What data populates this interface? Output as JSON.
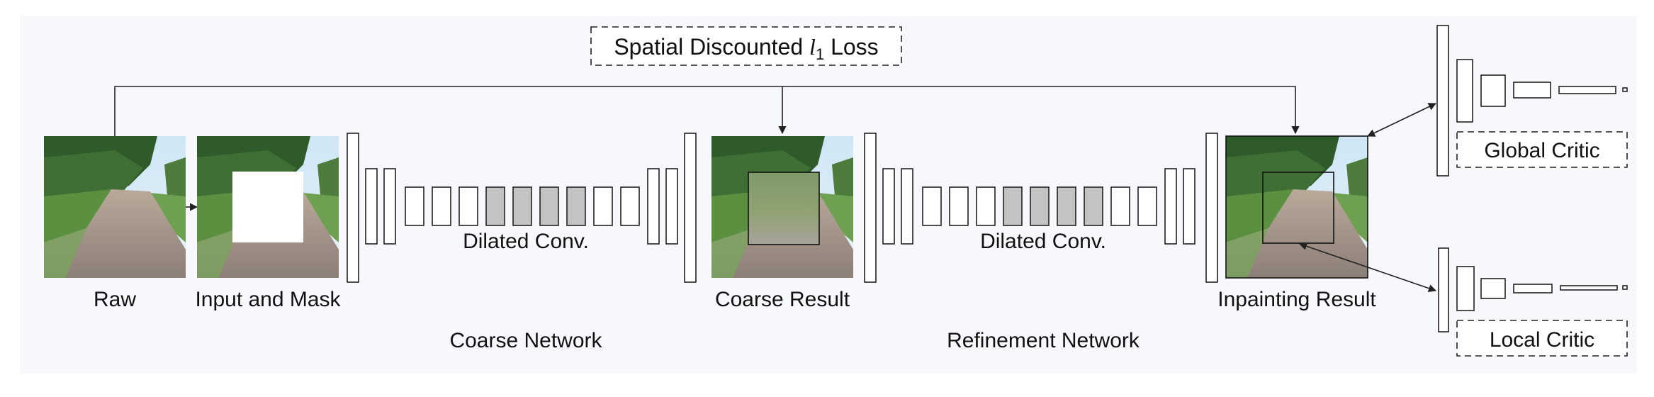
{
  "loss_label": {
    "main": "Spatial Discounted ",
    "var": "l",
    "sub": "1",
    "tail": " Loss"
  },
  "images": {
    "raw": "Raw",
    "input_mask": "Input and Mask",
    "coarse_result": "Coarse Result",
    "inpainting_result": "Inpainting Result"
  },
  "networks": {
    "coarse": {
      "name": "Coarse Network",
      "dilated": "Dilated Conv."
    },
    "refinement": {
      "name": "Refinement Network",
      "dilated": "Dilated Conv."
    }
  },
  "critics": {
    "global": "Global Critic",
    "local": "Local Critic"
  },
  "colors": {
    "background": "#f7f8fb",
    "dilated_fill": "#c3c3c3",
    "layer_fill": "#ffffff",
    "mask_fill": "#ffffff",
    "stroke": "#222222"
  }
}
